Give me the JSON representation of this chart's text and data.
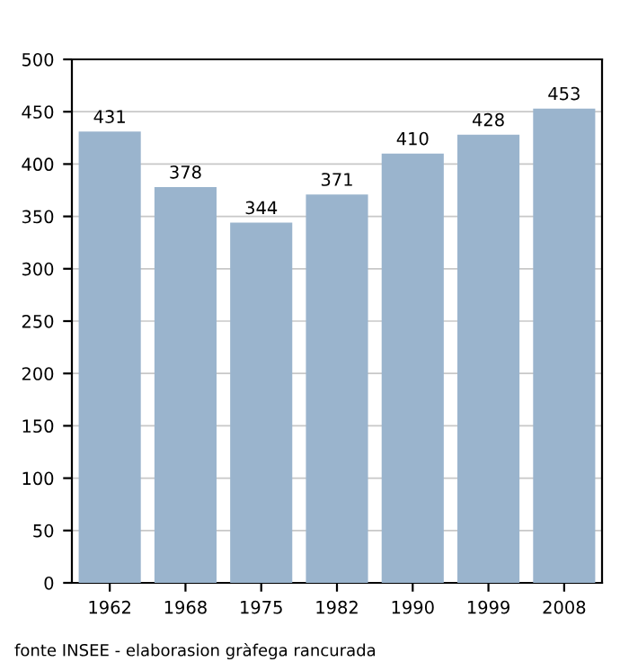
{
  "chart_data": {
    "type": "bar",
    "categories": [
      "1962",
      "1968",
      "1975",
      "1982",
      "1990",
      "1999",
      "2008"
    ],
    "values": [
      431,
      378,
      344,
      371,
      410,
      428,
      453
    ],
    "color": "#9ab4cd",
    "ylim": [
      0,
      500
    ],
    "yticks": [
      0,
      50,
      100,
      150,
      200,
      250,
      300,
      350,
      400,
      450,
      500
    ],
    "grid": "y",
    "data_labels": true,
    "annotations": [
      "fonte INSEE - elaborasion gràfega rancurada"
    ]
  }
}
